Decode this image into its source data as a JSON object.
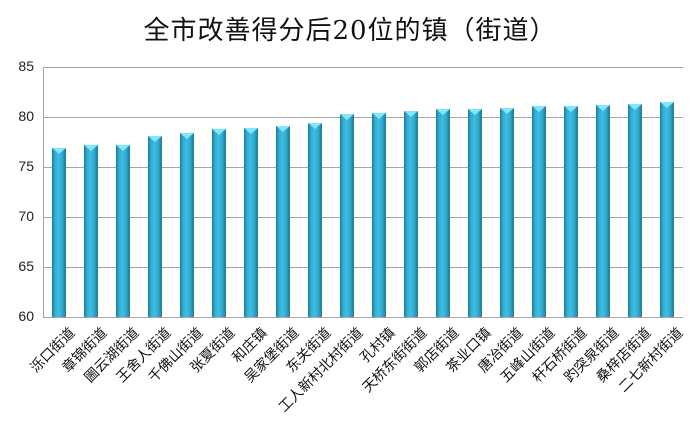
{
  "chart_data": {
    "type": "bar",
    "title": "全市改善得分后20位的镇（街道）",
    "xlabel": "",
    "ylabel": "",
    "ylim": [
      60,
      85
    ],
    "yticks": [
      60,
      65,
      70,
      75,
      80,
      85
    ],
    "grid": true,
    "legend": null,
    "categories": [
      "泺口街道",
      "章锦街道",
      "圌云湖街道",
      "王舍人街道",
      "千佛山街道",
      "张夏街道",
      "和庄镇",
      "吴家堡街道",
      "东关街道",
      "工人新村北村街道",
      "孔村镇",
      "天桥东街街道",
      "郭店街道",
      "茶业口镇",
      "唐冶街道",
      "五峰山街道",
      "杆石桥街道",
      "趵突泉街道",
      "桑梓店街道",
      "二七新村街道"
    ],
    "values": [
      76.9,
      77.2,
      77.2,
      78.1,
      78.4,
      78.8,
      78.9,
      79.1,
      79.4,
      80.3,
      80.4,
      80.6,
      80.8,
      80.8,
      80.9,
      81.1,
      81.1,
      81.2,
      81.3,
      81.5
    ],
    "bar_color": "#35a9cd"
  }
}
